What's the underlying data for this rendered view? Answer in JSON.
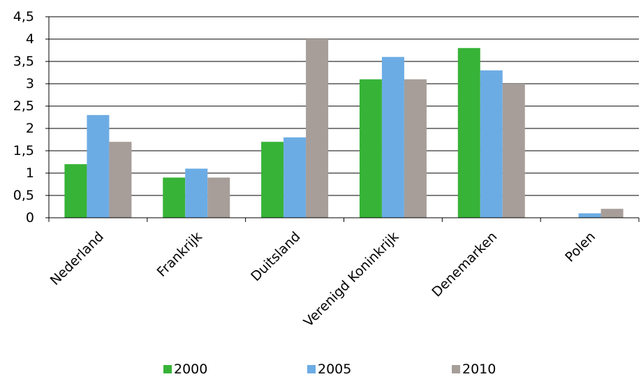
{
  "chart_data": {
    "type": "bar",
    "categories": [
      "Nederland",
      "Frankrijk",
      "Duitsland",
      "Verenigd Koninkrijk",
      "Denemarken",
      "Polen"
    ],
    "series": [
      {
        "name": "2000",
        "values": [
          1.2,
          0.9,
          1.7,
          3.1,
          3.8,
          0
        ],
        "color": "#37B337"
      },
      {
        "name": "2005",
        "values": [
          2.3,
          1.1,
          1.8,
          3.6,
          3.3,
          0.1
        ],
        "color": "#6CACE4"
      },
      {
        "name": "2010",
        "values": [
          1.7,
          0.9,
          4.0,
          3.1,
          3.0,
          0.2
        ],
        "color": "#A79E99"
      }
    ],
    "yticks": [
      "0",
      "0,5",
      "1",
      "1,5",
      "2",
      "2,5",
      "3",
      "3,5",
      "4",
      "4,5"
    ],
    "ylim": [
      0,
      4.5
    ],
    "grid": true,
    "legend_position": "bottom"
  }
}
